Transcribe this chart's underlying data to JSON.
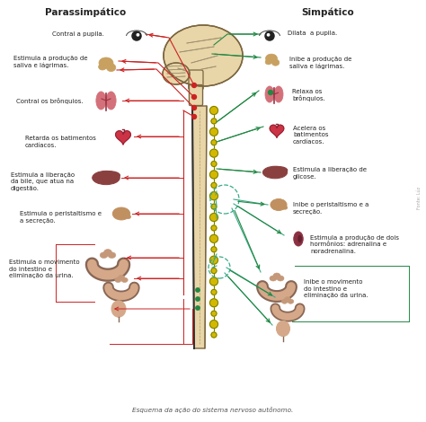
{
  "title_left": "Parassimpático",
  "title_right": "Simpático",
  "caption": "Esquema da ação do sistema nervoso autônomo.",
  "bg_color": "#ffffff",
  "brain_fill": "#e8d5a8",
  "brain_edge": "#7a6540",
  "spine_fill": "#e8d5a8",
  "spine_edge": "#7a6540",
  "node_fill": "#d4b800",
  "node_edge": "#6b7a00",
  "red": "#cc2222",
  "green": "#228844",
  "teal": "#3aaa88",
  "heart_l": "#cc3344",
  "heart_r": "#cc3344",
  "lung_l": "#d4707a",
  "lung_r": "#d4707a",
  "liver_l": "#8b4040",
  "liver_r": "#8b4040",
  "stomach_l": "#c09060",
  "stomach_r": "#c09060",
  "gland_col": "#c8a060",
  "kidney_col": "#8b3040",
  "intest_col": "#d4a888",
  "blad_col": "#d4a888",
  "eye_iris": "#111111",
  "text_col": "#222222",
  "label_size": 5.0,
  "title_size": 7.5,
  "caption_size": 5.2
}
